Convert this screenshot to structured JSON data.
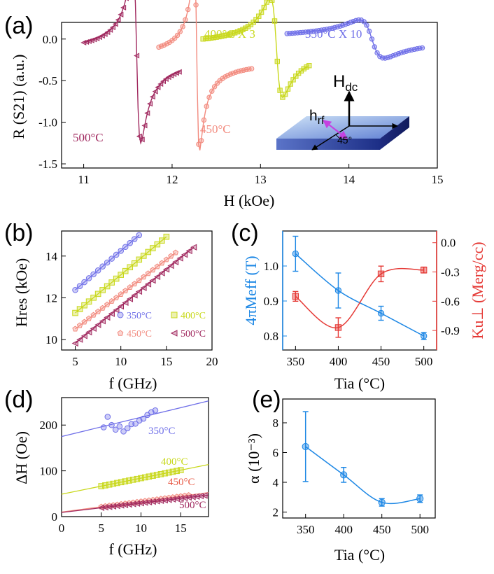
{
  "figure": {
    "panels": [
      "(a)",
      "(b)",
      "(c)",
      "(d)",
      "(e)"
    ]
  },
  "colors": {
    "c350": "#6f6fe8",
    "c400": "#c8d81a",
    "c450": "#f28a7e",
    "c500": "#a0285e",
    "blue": "#1e88e5",
    "red": "#e53935"
  },
  "chart_data": [
    {
      "id": "a",
      "type": "line",
      "title": "(a)",
      "xlabel": "H (kOe)",
      "ylabel": "R (S21) (a.u.)",
      "xlim": [
        10.75,
        15
      ],
      "ylim": [
        -1.55,
        0.2
      ],
      "xticks": [
        11,
        12,
        13,
        14,
        15
      ],
      "yticks": [
        0.0,
        -0.5,
        -1.0,
        -1.5
      ],
      "xtick_labels": [
        "11",
        "12",
        "13",
        "14",
        "15"
      ],
      "ytick_labels": [
        "0.0",
        "-0.5",
        "-1.0",
        "-1.5"
      ],
      "series": [
        {
          "name": "500°C",
          "label": "500°C",
          "color_key": "c500",
          "h0": 11.6,
          "dh": 0.045,
          "depth": 1.05,
          "base": -0.2,
          "xrange": [
            11.0,
            12.1
          ],
          "step": 0.03,
          "marker": "triangle-left"
        },
        {
          "name": "450°C",
          "label": "450°C",
          "color_key": "c450",
          "h0": 12.28,
          "dh": 0.03,
          "depth": 1.1,
          "base": -0.25,
          "xrange": [
            11.85,
            12.9
          ],
          "step": 0.03,
          "marker": "circle"
        },
        {
          "name": "400°C X 3",
          "label": "400°C X 3",
          "color_key": "c400",
          "h0": 13.18,
          "dh": 0.07,
          "depth": 0.6,
          "base": -0.1,
          "xrange": [
            12.35,
            13.55
          ],
          "step": 0.03,
          "marker": "square"
        },
        {
          "name": "350°C X 10",
          "label": "350°C X 10",
          "color_key": "c350",
          "h0": 14.26,
          "dh": 0.14,
          "depth": 0.23,
          "base": 0.0,
          "xrange": [
            13.3,
            14.85
          ],
          "step": 0.03,
          "marker": "circle"
        }
      ],
      "inset": {
        "field_label": "H",
        "field_subscript": "dc",
        "rf_label": "h",
        "rf_subscript": "rf",
        "angle_label": "45°"
      }
    },
    {
      "id": "b",
      "type": "scatter",
      "title": "(b)",
      "xlabel": "f (GHz)",
      "ylabel": "Hres (kOe)",
      "xlim": [
        3.5,
        20
      ],
      "ylim": [
        9.5,
        15.2
      ],
      "xticks": [
        5,
        10,
        15,
        20
      ],
      "yticks": [
        10,
        12,
        14
      ],
      "xtick_labels": [
        "5",
        "10",
        "15",
        "20"
      ],
      "ytick_labels": [
        "10",
        "12",
        "14"
      ],
      "series": [
        {
          "name": "350°C",
          "color_key": "c350",
          "marker": "circle",
          "slope": 0.375,
          "intercept": 10.5,
          "f": [
            5,
            5.5,
            6,
            6.5,
            7,
            7.5,
            8,
            8.5,
            9,
            9.5,
            10,
            10.5,
            11,
            11.5,
            12
          ]
        },
        {
          "name": "400°C",
          "color_key": "c400",
          "marker": "square",
          "slope": 0.365,
          "intercept": 9.45,
          "f": [
            5,
            5.5,
            6,
            6.5,
            7,
            7.5,
            8,
            8.5,
            9,
            9.5,
            10,
            10.5,
            11,
            11.5,
            12,
            12.5,
            13,
            13.5,
            14,
            14.5,
            15
          ]
        },
        {
          "name": "450°C",
          "color_key": "c450",
          "marker": "pentagon",
          "slope": 0.332,
          "intercept": 8.85,
          "f": [
            5,
            5.5,
            6,
            6.5,
            7,
            7.5,
            8,
            8.5,
            9,
            9.5,
            10,
            10.5,
            11,
            11.5,
            12,
            12.5,
            13,
            13.5,
            14,
            14.5,
            15,
            15.5,
            16
          ]
        },
        {
          "name": "500°C",
          "color_key": "c500",
          "marker": "triangle-left",
          "slope": 0.354,
          "intercept": 8.05,
          "f": [
            5,
            5.5,
            6,
            6.5,
            7,
            7.5,
            8,
            8.5,
            9,
            9.5,
            10,
            10.5,
            11,
            11.5,
            12,
            12.5,
            13,
            13.5,
            14,
            14.5,
            15,
            15.5,
            16,
            16.5,
            17,
            17.5,
            18
          ]
        }
      ],
      "legend": [
        "350°C",
        "400°C",
        "450°C",
        "500°C"
      ]
    },
    {
      "id": "c",
      "type": "line",
      "title": "(c)",
      "xlabel": "Tia (°C)",
      "ylabel_left": "4πMeff (T)",
      "ylabel_right": "Ku⊥ (Merg/cc)",
      "x": [
        350,
        400,
        450,
        500
      ],
      "xlim": [
        335,
        515
      ],
      "ylim_left": [
        0.76,
        1.1
      ],
      "ylim_right": [
        -1.1,
        0.12
      ],
      "xticks": [
        350,
        400,
        450,
        500
      ],
      "yticks_left": [
        0.8,
        0.9,
        1.0
      ],
      "yticks_right": [
        0.0,
        -0.3,
        -0.6,
        -0.9
      ],
      "xtick_labels": [
        "350",
        "400",
        "450",
        "500"
      ],
      "ytick_labels_left": [
        "0.8",
        "0.9",
        "1.0"
      ],
      "ytick_labels_right": [
        "0.0",
        "-0.3",
        "-0.6",
        "-0.9"
      ],
      "series": [
        {
          "name": "4πMeff",
          "color_key": "blue",
          "axis": "left",
          "marker": "circle",
          "values": [
            1.035,
            0.93,
            0.865,
            0.8
          ],
          "errors": [
            0.05,
            0.05,
            0.02,
            0.01
          ]
        },
        {
          "name": "Ku⊥",
          "color_key": "red",
          "axis": "right",
          "marker": "square",
          "values": [
            -0.55,
            -0.87,
            -0.32,
            -0.28
          ],
          "errors": [
            0.05,
            0.1,
            0.08,
            0.03
          ]
        }
      ]
    },
    {
      "id": "d",
      "type": "scatter",
      "title": "(d)",
      "xlabel": "f (GHz)",
      "ylabel": "ΔH (Oe)",
      "xlim": [
        0,
        18.5
      ],
      "ylim": [
        0,
        260
      ],
      "xticks": [
        0,
        5,
        10,
        15
      ],
      "yticks": [
        0,
        100,
        200
      ],
      "xtick_labels": [
        "0",
        "5",
        "10",
        "15"
      ],
      "ytick_labels": [
        "0",
        "100",
        "200"
      ],
      "series": [
        {
          "name": "350°C",
          "color_key": "c350",
          "marker": "circle",
          "slope": 4.2,
          "intercept": 175,
          "f": [
            5.3,
            5.8,
            6.3,
            6.8,
            7.3,
            7.8,
            8.3,
            8.8,
            9.3,
            9.8,
            10.3,
            10.8,
            11.3,
            11.8
          ],
          "y": [
            195,
            218,
            200,
            190,
            197,
            186,
            193,
            202,
            203,
            210,
            214,
            222,
            228,
            232
          ]
        },
        {
          "name": "400°C",
          "color_key": "c400",
          "marker": "square",
          "slope": 3.5,
          "intercept": 49,
          "f": [
            5,
            5.5,
            6,
            6.5,
            7,
            7.5,
            8,
            8.5,
            9,
            9.5,
            10,
            10.5,
            11,
            11.5,
            12,
            12.5,
            13,
            13.5,
            14,
            14.5,
            15
          ]
        },
        {
          "name": "450°C",
          "color_key": "c450",
          "marker": "pentagon",
          "slope": 2.3,
          "intercept": 10,
          "f": [
            5,
            5.5,
            6,
            6.5,
            7,
            7.5,
            8,
            8.5,
            9,
            9.5,
            10,
            10.5,
            11,
            11.5,
            12,
            12.5,
            13,
            13.5,
            14,
            14.5,
            15,
            15.5,
            16
          ]
        },
        {
          "name": "500°C",
          "color_key": "c500",
          "marker": "triangle-left",
          "slope": 2.05,
          "intercept": 9,
          "f": [
            5,
            5.5,
            6,
            6.5,
            7,
            7.5,
            8,
            8.5,
            9,
            9.5,
            10,
            10.5,
            11,
            11.5,
            12,
            12.5,
            13,
            13.5,
            14,
            14.5,
            15,
            15.5,
            16,
            16.5,
            17,
            17.5,
            18
          ]
        }
      ],
      "labels": [
        "350°C",
        "400°C",
        "450°C",
        "500°C"
      ]
    },
    {
      "id": "e",
      "type": "line",
      "title": "(e)",
      "xlabel": "Tia (°C)",
      "ylabel": "α (10⁻³)",
      "x": [
        350,
        400,
        450,
        500
      ],
      "values": [
        6.4,
        4.5,
        2.65,
        2.9
      ],
      "errors": [
        2.35,
        0.5,
        0.25,
        0.25
      ],
      "xlim": [
        320,
        520
      ],
      "ylim": [
        1.6,
        9.6
      ],
      "xticks": [
        350,
        400,
        450,
        500
      ],
      "yticks": [
        2,
        4,
        6,
        8
      ],
      "xtick_labels": [
        "350",
        "400",
        "450",
        "500"
      ],
      "ytick_labels": [
        "2",
        "4",
        "6",
        "8"
      ],
      "color_key": "blue"
    }
  ]
}
